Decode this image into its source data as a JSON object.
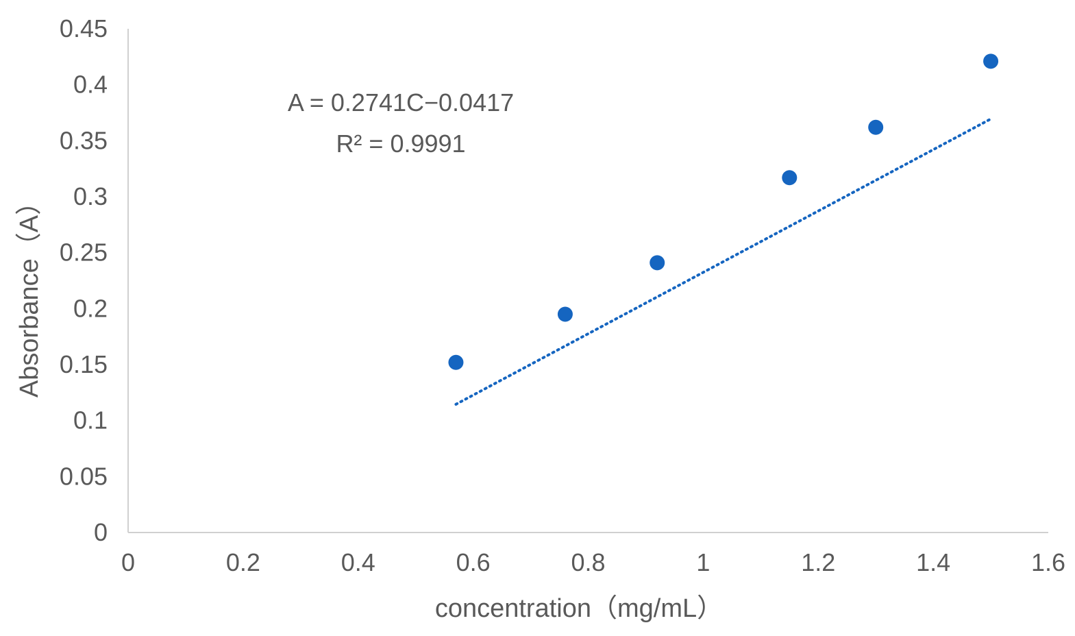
{
  "chart_data": {
    "type": "scatter",
    "title": "",
    "xlabel": "concentration（mg/mL）",
    "ylabel": "Absorbance（A）",
    "xlim": [
      0,
      1.6
    ],
    "ylim": [
      0,
      0.45
    ],
    "x_ticks": [
      "0",
      "0.2",
      "0.4",
      "0.6",
      "0.8",
      "1",
      "1.2",
      "1.4",
      "1.6"
    ],
    "y_ticks": [
      "0",
      "0.05",
      "0.1",
      "0.15",
      "0.2",
      "0.25",
      "0.3",
      "0.35",
      "0.4",
      "0.45"
    ],
    "grid": false,
    "legend": "none",
    "series": [
      {
        "x": [
          0.57,
          0.76,
          0.92,
          1.15,
          1.3,
          1.5
        ],
        "y": [
          0.152,
          0.195,
          0.241,
          0.317,
          0.362,
          0.421
        ],
        "color": "#1565C0"
      }
    ],
    "trendline": {
      "type": "linear",
      "slope": 0.2741,
      "intercept": -0.0417,
      "x_range": [
        0.57,
        1.5
      ],
      "style": "dotted",
      "color": "#1565C0"
    },
    "annotations": {
      "equation": "A = 0.2741C−0.0417",
      "r_squared": "R² = 0.9991"
    }
  }
}
